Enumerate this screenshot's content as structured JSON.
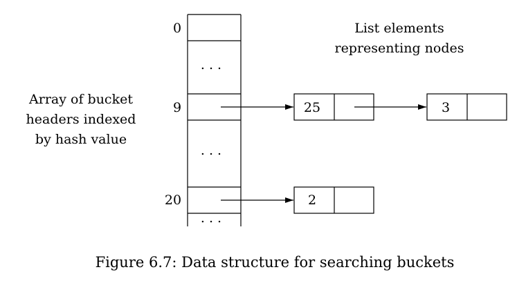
{
  "bucket_indices": [
    "0",
    "9",
    "20"
  ],
  "ellipsis": ". . .",
  "array_label": [
    "Array of bucket",
    "headers indexed",
    "by hash value"
  ],
  "list_label": [
    "List elements",
    "representing nodes"
  ],
  "nodes": [
    "25",
    "3",
    "2"
  ],
  "caption": "Figure 6.7: Data structure for searching buckets"
}
